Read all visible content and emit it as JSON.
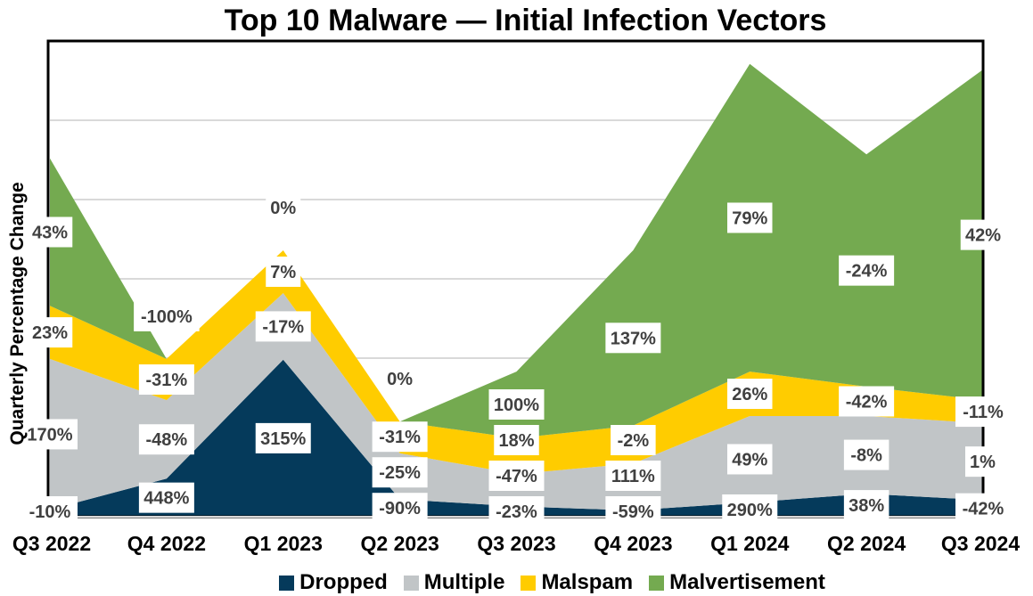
{
  "chart_data": {
    "type": "area",
    "stacked": true,
    "title": "Top 10 Malware — Initial Infection Vectors",
    "xlabel": "",
    "ylabel": "Quarterly Percentage Change",
    "categories": [
      "Q3 2022",
      "Q4 2022",
      "Q1 2023",
      "Q2 2023",
      "Q3 2023",
      "Q4 2023",
      "Q1 2024",
      "Q2 2024",
      "Q3 2024"
    ],
    "ylim": [
      0,
      6
    ],
    "y_tick_labels_shown": false,
    "grid": true,
    "legend_position": "bottom",
    "series": [
      {
        "name": "Dropped",
        "color": "#053A5B",
        "values": [
          0.09,
          0.48,
          1.98,
          0.22,
          0.13,
          0.08,
          0.18,
          0.29,
          0.21
        ],
        "labels": [
          "-10%",
          "448%",
          "315%",
          "-90%",
          "-23%",
          "-59%",
          "290%",
          "38%",
          "-42%"
        ]
      },
      {
        "name": "Multiple",
        "color": "#C1C5C7",
        "values": [
          1.9,
          0.99,
          0.84,
          0.58,
          0.41,
          0.59,
          1.09,
          0.98,
          0.97
        ],
        "labels": [
          "170%",
          "-48%",
          "-17%",
          "-25%",
          "-47%",
          "111%",
          "49%",
          "-8%",
          "1%"
        ]
      },
      {
        "name": "Malspam",
        "color": "#FFCC00",
        "values": [
          0.67,
          0.52,
          0.54,
          0.4,
          0.45,
          0.48,
          0.56,
          0.37,
          0.29
        ],
        "labels": [
          "23%",
          "-31%",
          "7%",
          "-31%",
          "18%",
          "-2%",
          "26%",
          "-42%",
          "-11%"
        ]
      },
      {
        "name": "Malvertisement",
        "color": "#74AA50",
        "values": [
          1.86,
          0,
          0,
          0,
          0.84,
          2.21,
          3.88,
          2.93,
          4.17
        ],
        "labels": [
          "43%",
          "-100%",
          "0%",
          "0%",
          "100%",
          "137%",
          "79%",
          "-24%",
          "42%"
        ]
      }
    ]
  }
}
